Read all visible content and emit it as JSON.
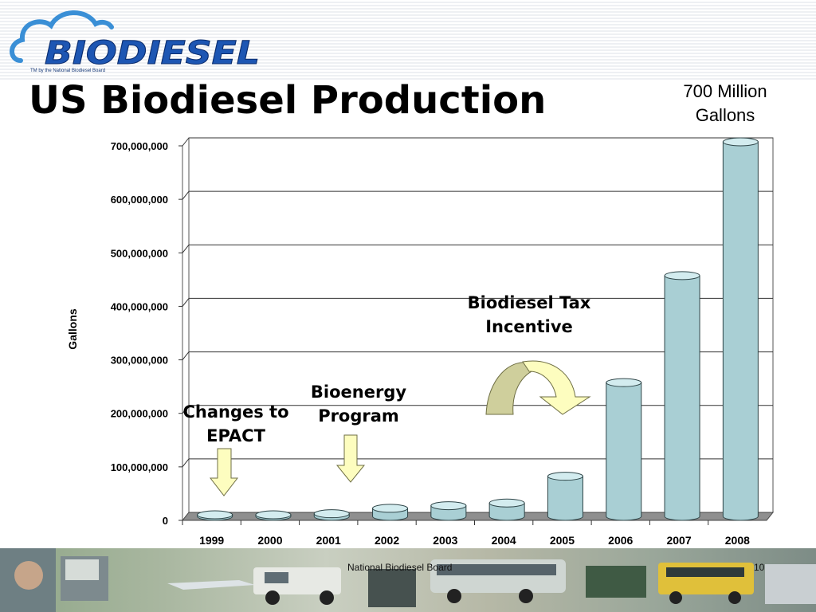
{
  "header": {
    "logo_text": "BIODIESEL",
    "logo_tagline": "TM by the National Biodiesel Board",
    "title": "US Biodiesel Production",
    "callout": [
      "700 Million",
      "Gallons"
    ]
  },
  "annotations": {
    "epact": [
      "Changes to",
      "EPACT"
    ],
    "bioenergy": [
      "Bioenergy",
      "Program"
    ],
    "tax": [
      "Biodiesel Tax",
      "Incentive"
    ]
  },
  "footer": {
    "organization": "National Biodiesel Board",
    "page_number": "10"
  },
  "colors": {
    "bar_fill": "#a9cfd4",
    "bar_top": "#d3ecef",
    "arrow_yellow": "#fdfdbf",
    "arrow_green": "#cfcf9c"
  },
  "chart_data": {
    "type": "bar",
    "categories": [
      "1999",
      "2000",
      "2001",
      "2002",
      "2003",
      "2004",
      "2005",
      "2006",
      "2007",
      "2008"
    ],
    "values": [
      500000,
      2000000,
      5000000,
      15000000,
      20000000,
      25000000,
      75000000,
      250000000,
      450000000,
      700000000
    ],
    "ylabel": "Gallons",
    "ylim": [
      0,
      700000000
    ],
    "yticks": [
      "0",
      "100,000,000",
      "200,000,000",
      "300,000,000",
      "400,000,000",
      "500,000,000",
      "600,000,000",
      "700,000,000"
    ],
    "grid": true,
    "style": "3d-cylinder"
  }
}
